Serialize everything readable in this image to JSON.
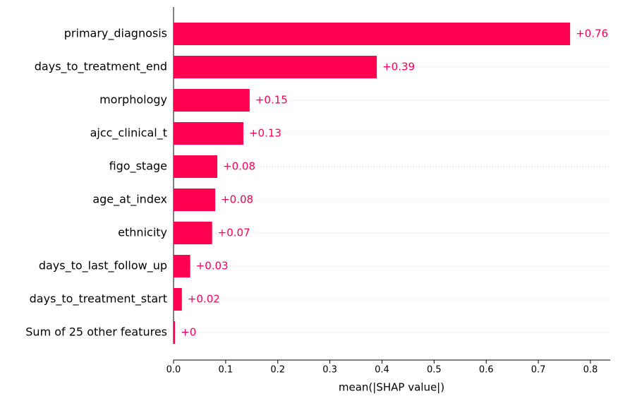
{
  "chart_data": {
    "type": "barh",
    "xlabel": "mean(|SHAP value|)",
    "categories": [
      "primary_diagnosis",
      "days_to_treatment_end",
      "morphology",
      "ajcc_clinical_t",
      "figo_stage",
      "age_at_index",
      "ethnicity",
      "days_to_last_follow_up",
      "days_to_treatment_start",
      "Sum of 25 other features"
    ],
    "values": [
      0.761,
      0.39,
      0.146,
      0.134,
      0.084,
      0.08,
      0.074,
      0.032,
      0.016,
      0.003
    ],
    "value_labels": [
      "+0.76",
      "+0.39",
      "+0.15",
      "+0.13",
      "+0.08",
      "+0.08",
      "+0.07",
      "+0.03",
      "+0.02",
      "+0"
    ],
    "color": "#ff0051",
    "xlim": [
      0,
      0.838
    ],
    "xticks": [
      {
        "value": 0,
        "label": "0.0"
      },
      0.1,
      0.2,
      0.3,
      0.4,
      0.5,
      0.6,
      0.7,
      0.8
    ],
    "grid": true
  }
}
